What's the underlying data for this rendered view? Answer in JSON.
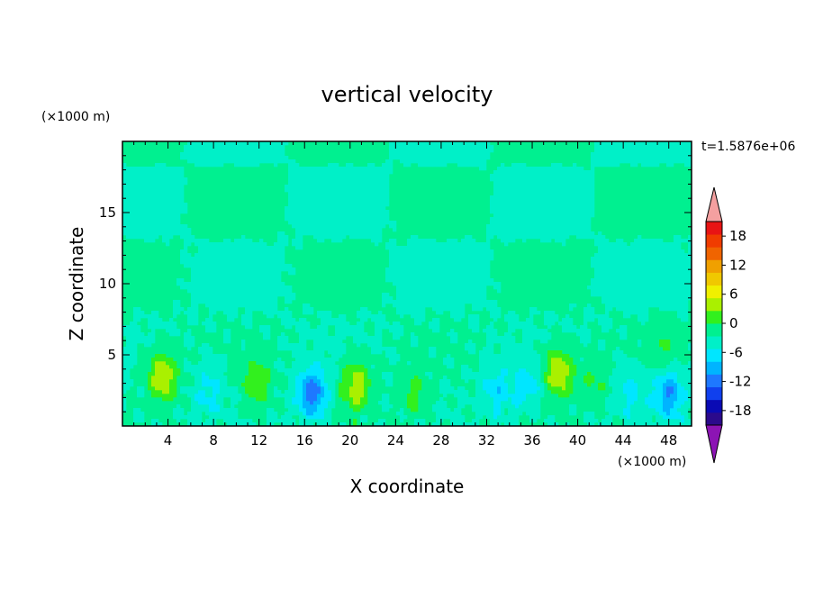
{
  "chart_data": {
    "type": "heatmap",
    "title": "vertical velocity",
    "xlabel": "X coordinate",
    "ylabel": "Z coordinate",
    "x_unit": "(×1000 m)",
    "y_unit": "(×1000 m)",
    "time_label": "t=1.5876e+06",
    "xlim": [
      0,
      50
    ],
    "ylim": [
      0,
      20
    ],
    "x_ticks": [
      4,
      8,
      12,
      16,
      20,
      24,
      28,
      32,
      36,
      40,
      44,
      48
    ],
    "y_ticks": [
      5,
      10,
      15
    ],
    "colorbar": {
      "tick_labels": [
        "18",
        "12",
        "6",
        "0",
        "-6",
        "-12",
        "-18"
      ],
      "tick_values": [
        18,
        12,
        6,
        0,
        -6,
        -12,
        -18
      ],
      "levels": [
        -21,
        -18,
        -15,
        -12,
        -9,
        -6,
        -3,
        0,
        3,
        6,
        9,
        12,
        15,
        18,
        21
      ],
      "colors": [
        "#2b0a8c",
        "#0a0ab4",
        "#1040ee",
        "#1e78ff",
        "#00b4ff",
        "#00e6ff",
        "#00f0c8",
        "#00f090",
        "#32f01e",
        "#aaf000",
        "#f0f000",
        "#f0c800",
        "#f0a000",
        "#f06400",
        "#f03c00",
        "#e81414"
      ],
      "under_color": "#8c14b4",
      "over_color": "#f4a0a0"
    },
    "updraft_cores": [
      {
        "x": 3.5,
        "z": 3.5,
        "w": 9
      },
      {
        "x": 11.8,
        "z": 3.0,
        "w": 5
      },
      {
        "x": 20.5,
        "z": 2.8,
        "w": 8
      },
      {
        "x": 25.5,
        "z": 2.2,
        "w": 4
      },
      {
        "x": 38.3,
        "z": 3.8,
        "w": 9
      },
      {
        "x": 41.5,
        "z": 3.0,
        "w": 3
      },
      {
        "x": 47.5,
        "z": 5.5,
        "w": 3
      }
    ],
    "downdraft_cores": [
      {
        "x": 16.7,
        "z": 2.3,
        "w": -11
      },
      {
        "x": 7.6,
        "z": 2.5,
        "w": -4
      },
      {
        "x": 32.8,
        "z": 2.5,
        "w": -5
      },
      {
        "x": 35.5,
        "z": 2.8,
        "w": -5
      },
      {
        "x": 48.0,
        "z": 2.3,
        "w": -9
      },
      {
        "x": 44.5,
        "z": 2.5,
        "w": -4
      }
    ]
  }
}
